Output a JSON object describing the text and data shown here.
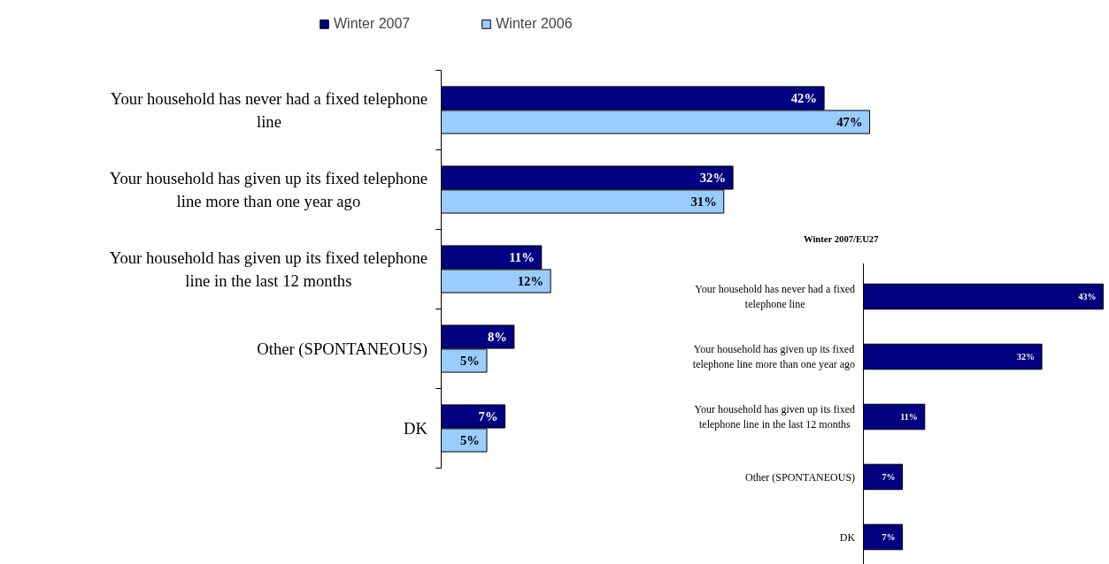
{
  "chart_data": [
    {
      "type": "bar",
      "orientation": "horizontal",
      "categories": [
        "Your household has never had a fixed telephone line",
        "Your household has given up its fixed telephone line more than one year ago",
        "Your household has given up its fixed telephone line in the last 12 months",
        "Other (SPONTANEOUS)",
        "DK"
      ],
      "series": [
        {
          "name": "Winter 2007",
          "color": "#000080",
          "values": [
            42,
            32,
            11,
            8,
            7
          ],
          "value_labels": [
            "42%",
            "32%",
            "11%",
            "8%",
            "7%"
          ]
        },
        {
          "name": "Winter 2006",
          "color": "#99ccff",
          "values": [
            47,
            31,
            12,
            5,
            5
          ],
          "value_labels": [
            "47%",
            "31%",
            "12%",
            "5%",
            "5%"
          ]
        }
      ],
      "legend": "top"
    },
    {
      "type": "bar",
      "orientation": "horizontal",
      "title": "Winter 2007/EU27",
      "categories": [
        "Your household has never had a fixed telephone line",
        "Your household has given up its fixed telephone line more than one year ago",
        "Your household has given up its fixed telephone line in the last 12 months",
        "Other (SPONTANEOUS)",
        "DK"
      ],
      "series": [
        {
          "color": "#000080",
          "values": [
            43,
            32,
            11,
            7,
            7
          ],
          "value_labels": [
            "43%",
            "32%",
            "11%",
            "7%",
            "7%"
          ]
        }
      ]
    }
  ]
}
